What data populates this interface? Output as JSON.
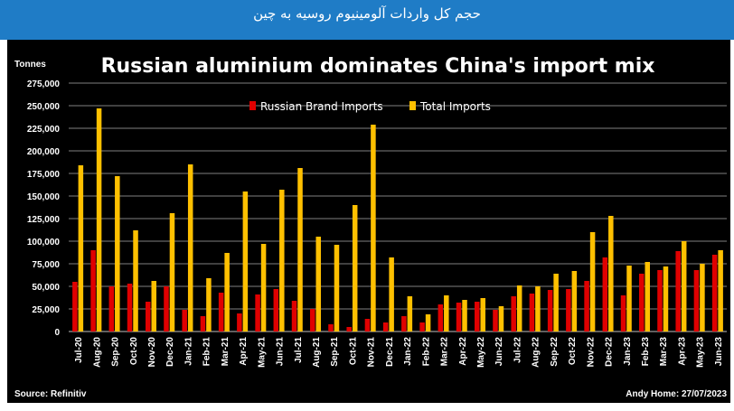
{
  "header": {
    "text": "حجم کل واردات آلومینیوم روسیه به چین",
    "band_color": "#1f7cc6"
  },
  "chart_data": {
    "type": "bar",
    "title": "Russian aluminium dominates China's import mix",
    "ylabel": "Tonnes",
    "ylim": [
      0,
      275000
    ],
    "yticks": [
      "0",
      "25,000",
      "50,000",
      "75,000",
      "100,000",
      "125,000",
      "150,000",
      "175,000",
      "200,000",
      "225,000",
      "250,000",
      "275,000"
    ],
    "grid": true,
    "legend_position": "top-center",
    "categories": [
      "Jul-20",
      "Aug-20",
      "Sep-20",
      "Oct-20",
      "Nov-20",
      "Dec-20",
      "Jan-21",
      "Feb-21",
      "Mar-21",
      "Apr-21",
      "May-21",
      "Jun-21",
      "Jul-21",
      "Aug-21",
      "Sep-21",
      "Oct-21",
      "Nov-21",
      "Dec-21",
      "Jan-22",
      "Feb-22",
      "Mar-22",
      "Apr-22",
      "May-22",
      "Jun-22",
      "Jul-22",
      "Aug-22",
      "Sep-22",
      "Oct-22",
      "Nov-22",
      "Dec-22",
      "Jan-23",
      "Feb-23",
      "Mar-23",
      "Apr-23",
      "May-23",
      "Jun-23"
    ],
    "series": [
      {
        "name": "Russian Brand Imports",
        "color": "#e00000",
        "values": [
          55000,
          90000,
          50000,
          53000,
          33000,
          50000,
          24000,
          17000,
          43000,
          20000,
          41000,
          47000,
          34000,
          25000,
          8000,
          5000,
          14000,
          10000,
          17000,
          10000,
          30000,
          32000,
          33000,
          24000,
          39000,
          42000,
          46000,
          47000,
          56000,
          82000,
          40000,
          64000,
          68000,
          89000,
          68000,
          85000
        ]
      },
      {
        "name": "Total Imports",
        "color": "#ffc000",
        "values": [
          184000,
          247000,
          172000,
          112000,
          56000,
          131000,
          185000,
          59000,
          87000,
          155000,
          97000,
          157000,
          181000,
          105000,
          96000,
          140000,
          229000,
          82000,
          39000,
          19000,
          40000,
          35000,
          37000,
          28000,
          51000,
          50000,
          64000,
          67000,
          110000,
          128000,
          73000,
          77000,
          72000,
          100000,
          75000,
          90000
        ]
      }
    ],
    "source": "Source: Refinitiv",
    "credit": "Andy Home: 27/07/2023"
  }
}
